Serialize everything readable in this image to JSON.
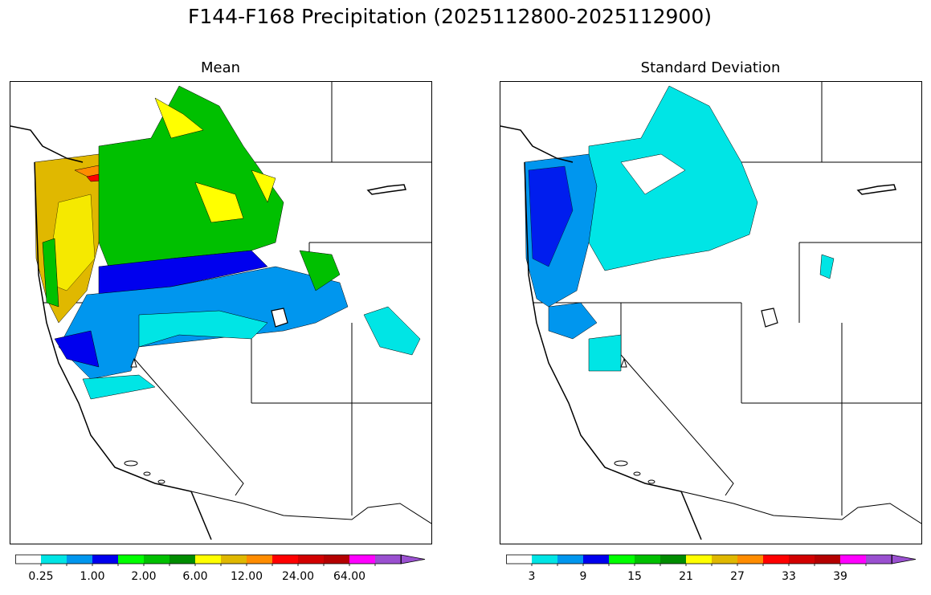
{
  "title": "F144-F168 Precipitation (2025112800-2025112900)",
  "panels": [
    {
      "id": "mean",
      "title": "Mean",
      "colorbar": {
        "colors": [
          "#ffffff",
          "#00e5e5",
          "#0096ee",
          "#0000ee",
          "#00ff00",
          "#00c000",
          "#008c00",
          "#ffff00",
          "#e0b800",
          "#ff8c00",
          "#ff0000",
          "#d20000",
          "#b40000",
          "#ff00ff",
          "#9a50d0"
        ],
        "tick_labels": [
          "0.25",
          "1.00",
          "2.00",
          "6.00",
          "12.00",
          "24.00",
          "64.00"
        ],
        "extend": "max"
      }
    },
    {
      "id": "std",
      "title": "Standard Deviation",
      "colorbar": {
        "colors": [
          "#ffffff",
          "#00e5e5",
          "#0096ee",
          "#0000ee",
          "#00ff00",
          "#00c000",
          "#008c00",
          "#ffff00",
          "#e0b800",
          "#ff8c00",
          "#ff0000",
          "#d20000",
          "#b40000",
          "#ff00ff",
          "#9a50d0"
        ],
        "tick_labels": [
          "3",
          "9",
          "15",
          "21",
          "27",
          "33",
          "39"
        ],
        "extend": "max"
      }
    }
  ]
}
